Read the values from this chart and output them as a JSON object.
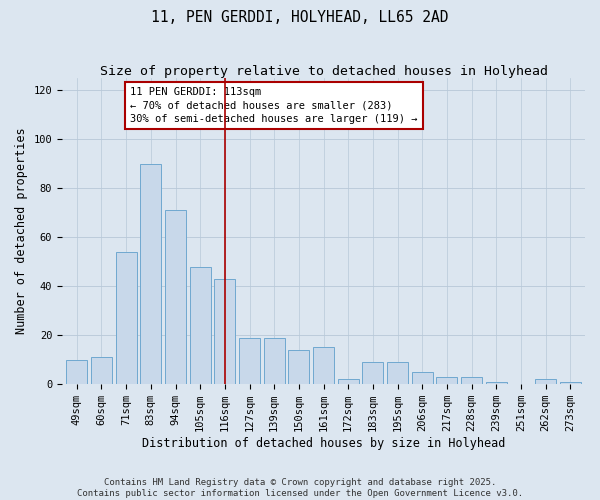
{
  "title": "11, PEN GERDDI, HOLYHEAD, LL65 2AD",
  "subtitle": "Size of property relative to detached houses in Holyhead",
  "xlabel": "Distribution of detached houses by size in Holyhead",
  "ylabel": "Number of detached properties",
  "categories": [
    "49sqm",
    "60sqm",
    "71sqm",
    "83sqm",
    "94sqm",
    "105sqm",
    "116sqm",
    "127sqm",
    "139sqm",
    "150sqm",
    "161sqm",
    "172sqm",
    "183sqm",
    "195sqm",
    "206sqm",
    "217sqm",
    "228sqm",
    "239sqm",
    "251sqm",
    "262sqm",
    "273sqm"
  ],
  "values": [
    10,
    11,
    54,
    90,
    71,
    48,
    43,
    19,
    19,
    14,
    15,
    2,
    9,
    9,
    5,
    3,
    3,
    1,
    0,
    2,
    1
  ],
  "bar_color": "#c8d8ea",
  "bar_edge_color": "#6fa8d0",
  "grid_color": "#b8c8d8",
  "background_color": "#dce6f0",
  "vline_x_index": 6,
  "vline_color": "#aa0000",
  "annotation_text": "11 PEN GERDDI: 113sqm\n← 70% of detached houses are smaller (283)\n30% of semi-detached houses are larger (119) →",
  "annotation_box_color": "#ffffff",
  "annotation_edge_color": "#aa0000",
  "ylim": [
    0,
    125
  ],
  "yticks": [
    0,
    20,
    40,
    60,
    80,
    100,
    120
  ],
  "footnote": "Contains HM Land Registry data © Crown copyright and database right 2025.\nContains public sector information licensed under the Open Government Licence v3.0.",
  "title_fontsize": 10.5,
  "subtitle_fontsize": 9.5,
  "axis_label_fontsize": 8.5,
  "tick_fontsize": 7.5,
  "annotation_fontsize": 7.5,
  "footnote_fontsize": 6.5
}
